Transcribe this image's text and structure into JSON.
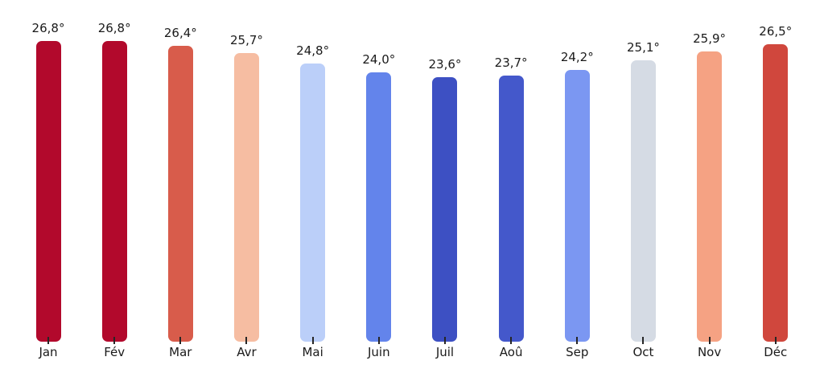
{
  "chart_data": {
    "type": "bar",
    "title": "",
    "xlabel": "",
    "ylabel": "",
    "grid": false,
    "legend": null,
    "ylim": [
      0,
      30
    ],
    "categories": [
      "Jan",
      "Fév",
      "Mar",
      "Avr",
      "Mai",
      "Juin",
      "Juil",
      "Aoû",
      "Sep",
      "Oct",
      "Nov",
      "Déc"
    ],
    "values": [
      26.8,
      26.8,
      26.4,
      25.7,
      24.8,
      24.0,
      23.6,
      23.7,
      24.2,
      25.1,
      25.9,
      26.5
    ],
    "value_labels": [
      "26,8°",
      "26,8°",
      "26,4°",
      "25,7°",
      "24,8°",
      "24,0°",
      "23,6°",
      "23,7°",
      "24,2°",
      "25,1°",
      "25,9°",
      "26,5°"
    ],
    "bar_colors": [
      "#b2092c",
      "#b2092c",
      "#d85c4b",
      "#f6bda2",
      "#bbcff9",
      "#6384eb",
      "#3d50c3",
      "#4458cb",
      "#7b97f2",
      "#d5dbe4",
      "#f5a283",
      "#d0473d"
    ],
    "text_color": "#1a1a1a",
    "background_color": "#ffffff"
  }
}
